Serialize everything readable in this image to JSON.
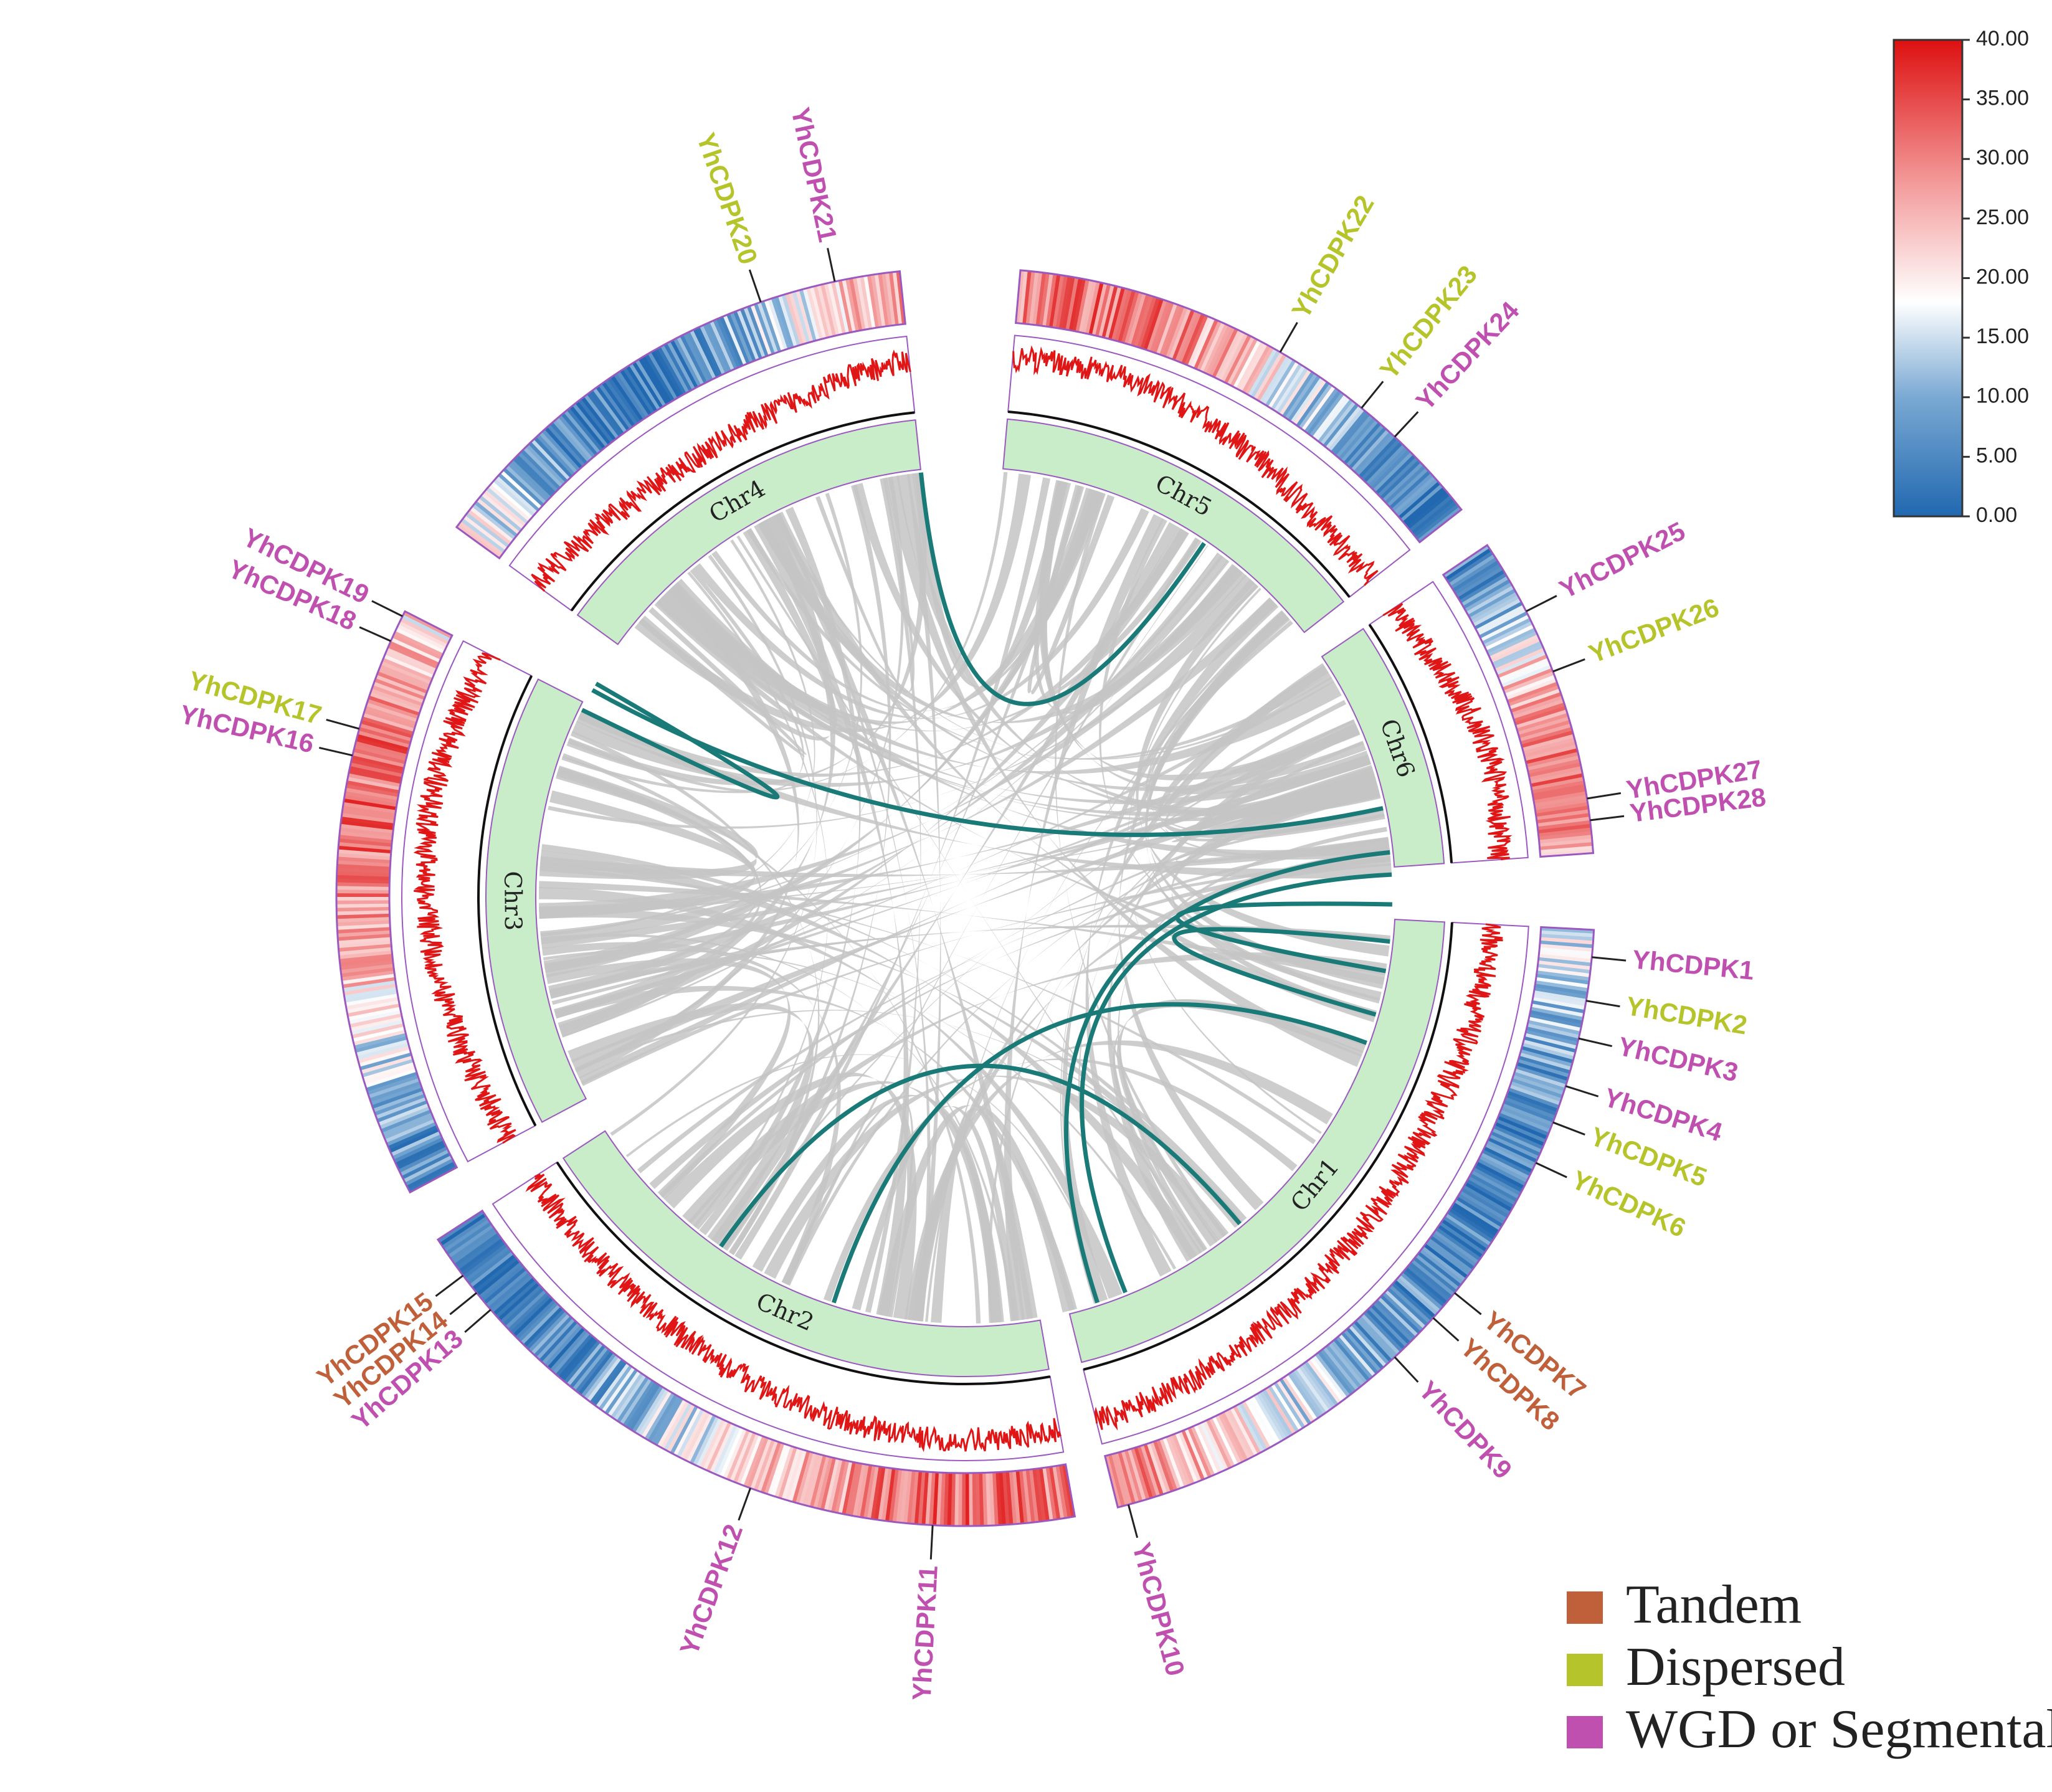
{
  "chromosomes": [
    {
      "name": "Chr1",
      "start_deg": 93,
      "end_deg": 166
    },
    {
      "name": "Chr2",
      "start_deg": 170,
      "end_deg": 237
    },
    {
      "name": "Chr3",
      "start_deg": 242,
      "end_deg": 297
    },
    {
      "name": "Chr4",
      "start_deg": 306,
      "end_deg": 354
    },
    {
      "name": "Chr5",
      "start_deg": 5,
      "end_deg": 52
    },
    {
      "name": "Chr6",
      "start_deg": 56,
      "end_deg": 86
    }
  ],
  "genes": [
    {
      "name": "YhCDPK1",
      "type": "wgd",
      "angle": 95.5
    },
    {
      "name": "YhCDPK2",
      "type": "dispersed",
      "angle": 99.5
    },
    {
      "name": "YhCDPK3",
      "type": "wgd",
      "angle": 103
    },
    {
      "name": "YhCDPK4",
      "type": "wgd",
      "angle": 107.5
    },
    {
      "name": "YhCDPK5",
      "type": "dispersed",
      "angle": 111
    },
    {
      "name": "YhCDPK6",
      "type": "dispersed",
      "angle": 115
    },
    {
      "name": "YhCDPK7",
      "type": "tandem",
      "angle": 129
    },
    {
      "name": "YhCDPK8",
      "type": "tandem",
      "angle": 132
    },
    {
      "name": "YhCDPK9",
      "type": "wgd",
      "angle": 137
    },
    {
      "name": "YhCDPK10",
      "type": "wgd",
      "angle": 165
    },
    {
      "name": "YhCDPK11",
      "type": "wgd",
      "angle": 183
    },
    {
      "name": "YhCDPK12",
      "type": "wgd",
      "angle": 200
    },
    {
      "name": "YhCDPK13",
      "type": "wgd",
      "angle": 229
    },
    {
      "name": "YhCDPK14",
      "type": "tandem",
      "angle": 231
    },
    {
      "name": "YhCDPK15",
      "type": "tandem",
      "angle": 233
    },
    {
      "name": "YhCDPK16",
      "type": "wgd",
      "angle": 283
    },
    {
      "name": "YhCDPK17",
      "type": "dispersed",
      "angle": 285.5
    },
    {
      "name": "YhCDPK18",
      "type": "wgd",
      "angle": 294
    },
    {
      "name": "YhCDPK19",
      "type": "wgd",
      "angle": 296.5
    },
    {
      "name": "YhCDPK20",
      "type": "dispersed",
      "angle": 341
    },
    {
      "name": "YhCDPK21",
      "type": "wgd",
      "angle": 348
    },
    {
      "name": "YhCDPK22",
      "type": "dispersed",
      "angle": 30
    },
    {
      "name": "YhCDPK23",
      "type": "dispersed",
      "angle": 39
    },
    {
      "name": "YhCDPK24",
      "type": "wgd",
      "angle": 43
    },
    {
      "name": "YhCDPK25",
      "type": "wgd",
      "angle": 63
    },
    {
      "name": "YhCDPK26",
      "type": "dispersed",
      "angle": 69
    },
    {
      "name": "YhCDPK27",
      "type": "wgd",
      "angle": 81
    },
    {
      "name": "YhCDPK28",
      "type": "wgd",
      "angle": 83
    }
  ],
  "wgd_links": [
    [
      354,
      34
    ],
    [
      299,
      78
    ],
    [
      296,
      300
    ],
    [
      162,
      84
    ],
    [
      91,
      100
    ],
    [
      96,
      106
    ],
    [
      87,
      158
    ],
    [
      215,
      140
    ],
    [
      198,
      110
    ]
  ],
  "colors": {
    "tandem": "#c0603a",
    "dispersed": "#b5c42a",
    "wgd": "#c050b0",
    "link": "#1a7a78",
    "background_link": "#c4c4c4",
    "chr_fill": "#c9ecc9",
    "line": "#e01515"
  },
  "colorbar": {
    "ticks": [
      "40.00",
      "35.00",
      "30.00",
      "25.00",
      "20.00",
      "15.00",
      "10.00",
      "5.00",
      "0.00"
    ]
  },
  "legend": [
    {
      "label": "Tandem",
      "type": "tandem"
    },
    {
      "label": "Dispersed",
      "type": "dispersed"
    },
    {
      "label": "WGD or Segmental",
      "type": "wgd"
    }
  ]
}
